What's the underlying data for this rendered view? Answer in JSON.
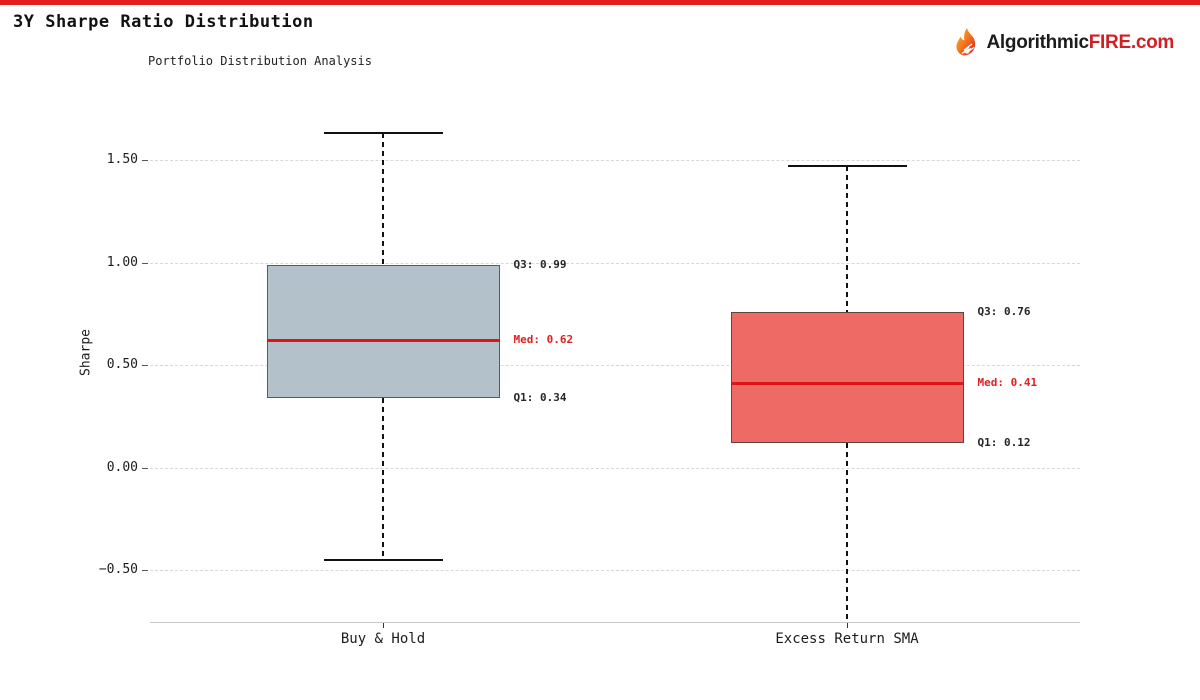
{
  "page": {
    "accent_bar_color": "#e11d1d"
  },
  "brand": {
    "name_black": "Algorithmic",
    "name_red": "FIRE",
    "name_suffix": ".com",
    "black_color": "#1c1c1c",
    "red_color": "#d21f26"
  },
  "chart_data": {
    "type": "boxplot",
    "title": "3Y Sharpe Ratio Distribution",
    "subtitle": "Portfolio Distribution Analysis",
    "ylabel": "Sharpe",
    "categories": [
      "Buy & Hold",
      "Excess Return SMA"
    ],
    "yticks": [
      {
        "label": "1.50",
        "value": 1.5
      },
      {
        "label": "1.00",
        "value": 1.0
      },
      {
        "label": "0.50",
        "value": 0.5
      },
      {
        "label": "0.00",
        "value": 0.0
      },
      {
        "label": "−0.50",
        "value": -0.5
      }
    ],
    "ylim_visible": [
      -0.76,
      1.79
    ],
    "grid": true,
    "legend": false,
    "median_color": "#dd1515",
    "median_label_color": "#dd2222",
    "annotation_color": "#262626",
    "whisker_color": "#111111",
    "series": [
      {
        "name": "Buy & Hold",
        "whisker_high": 1.63,
        "q3": 0.99,
        "median": 0.62,
        "q1": 0.34,
        "whisker_low": -0.45,
        "whisker_low_clipped": false,
        "q3_label": "Q3: 0.99",
        "med_label": "Med: 0.62",
        "q1_label": "Q1: 0.34",
        "box_fill": "#b2c1ca",
        "box_border": "#4e5f6a"
      },
      {
        "name": "Excess Return SMA",
        "whisker_high": 1.47,
        "q3": 0.76,
        "median": 0.41,
        "q1": 0.12,
        "whisker_low": null,
        "whisker_low_clipped": true,
        "q3_label": "Q3: 0.76",
        "med_label": "Med: 0.41",
        "q1_label": "Q1: 0.12",
        "box_fill": "#ee6b65",
        "box_border": "#5e4340"
      }
    ]
  }
}
